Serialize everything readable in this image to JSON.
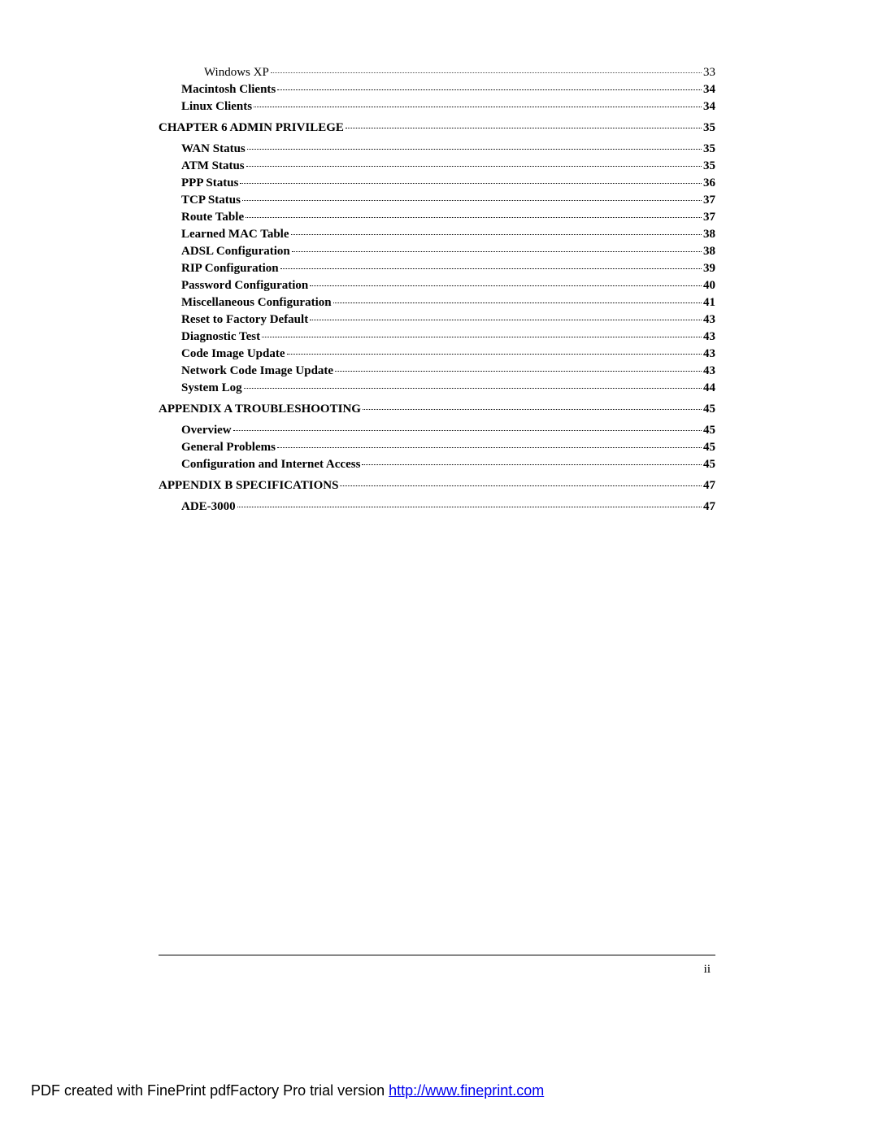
{
  "toc": [
    {
      "level": 2,
      "label": "Windows XP",
      "page": "33",
      "bold": false,
      "leader": "light",
      "spaced": false
    },
    {
      "level": 1,
      "label": "Macintosh Clients",
      "page": "34",
      "bold": true,
      "leader": "heavy",
      "spaced": false
    },
    {
      "level": 1,
      "label": "Linux Clients",
      "page": "34",
      "bold": true,
      "leader": "heavy",
      "spaced": false
    },
    {
      "level": 0,
      "label": "CHAPTER 6 ADMIN PRIVILEGE",
      "page": "35",
      "bold": true,
      "leader": "heavy",
      "spaced": true
    },
    {
      "level": 1,
      "label": "WAN Status",
      "page": "35",
      "bold": true,
      "leader": "heavy",
      "spaced": true
    },
    {
      "level": 1,
      "label": "ATM Status",
      "page": "35",
      "bold": true,
      "leader": "heavy",
      "spaced": false
    },
    {
      "level": 1,
      "label": "PPP Status",
      "page": "36",
      "bold": true,
      "leader": "heavy",
      "spaced": false
    },
    {
      "level": 1,
      "label": "TCP Status",
      "page": "37",
      "bold": true,
      "leader": "heavy",
      "spaced": false
    },
    {
      "level": 1,
      "label": "Route Table",
      "page": "37",
      "bold": true,
      "leader": "heavy",
      "spaced": false
    },
    {
      "level": 1,
      "label": "Learned MAC Table",
      "page": "38",
      "bold": true,
      "leader": "heavy",
      "spaced": false
    },
    {
      "level": 1,
      "label": "ADSL Configuration",
      "page": "38",
      "bold": true,
      "leader": "heavy",
      "spaced": false
    },
    {
      "level": 1,
      "label": "RIP Configuration",
      "page": "39",
      "bold": true,
      "leader": "heavy",
      "spaced": false
    },
    {
      "level": 1,
      "label": "Password Configuration",
      "page": "40",
      "bold": true,
      "leader": "heavy",
      "spaced": false
    },
    {
      "level": 1,
      "label": "Miscellaneous Configuration",
      "page": "41",
      "bold": true,
      "leader": "heavy",
      "spaced": false
    },
    {
      "level": 1,
      "label": "Reset to Factory Default",
      "page": "43",
      "bold": true,
      "leader": "heavy",
      "spaced": false
    },
    {
      "level": 1,
      "label": "Diagnostic Test",
      "page": "43",
      "bold": true,
      "leader": "heavy",
      "spaced": false
    },
    {
      "level": 1,
      "label": "Code Image Update",
      "page": "43",
      "bold": true,
      "leader": "heavy",
      "spaced": false
    },
    {
      "level": 1,
      "label": "Network Code Image Update",
      "page": "43",
      "bold": true,
      "leader": "heavy",
      "spaced": false
    },
    {
      "level": 1,
      "label": "System Log",
      "page": "44",
      "bold": true,
      "leader": "heavy",
      "spaced": false
    },
    {
      "level": 0,
      "label": "APPENDIX A TROUBLESHOOTING",
      "page": "45",
      "bold": true,
      "leader": "heavy",
      "spaced": true
    },
    {
      "level": 1,
      "label": "Overview",
      "page": "45",
      "bold": true,
      "leader": "heavy",
      "spaced": true
    },
    {
      "level": 1,
      "label": "General Problems",
      "page": "45",
      "bold": true,
      "leader": "heavy",
      "spaced": false
    },
    {
      "level": 1,
      "label": "Configuration and Internet Access",
      "page": "45",
      "bold": true,
      "leader": "heavy",
      "spaced": false
    },
    {
      "level": 0,
      "label": "APPENDIX B SPECIFICATIONS",
      "page": "47",
      "bold": true,
      "leader": "heavy",
      "spaced": true
    },
    {
      "level": 1,
      "label": "ADE-3000",
      "page": "47",
      "bold": true,
      "leader": "heavy",
      "spaced": true
    }
  ],
  "page_number": "ii",
  "footer": {
    "prefix": "PDF created with FinePrint pdfFactory Pro trial version ",
    "link_text": "http://www.fineprint.com",
    "link_href": "http://www.fineprint.com"
  }
}
